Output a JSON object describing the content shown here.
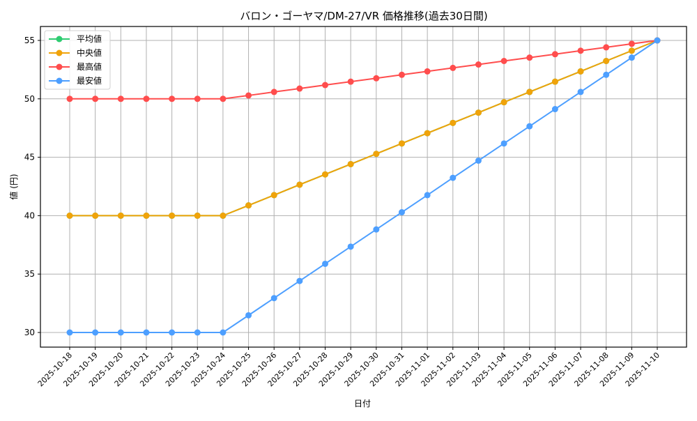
{
  "chart_data": {
    "type": "line",
    "title": "バロン・ゴーヤマ/DM-27/VR 価格推移(過去30日間)",
    "xlabel": "日付",
    "ylabel": "値 (円)",
    "ylim": [
      28.7,
      56.2
    ],
    "yticks": [
      30,
      35,
      40,
      45,
      50,
      55
    ],
    "grid": true,
    "legend_position": "upper left",
    "x": [
      "2025-10-18",
      "2025-10-19",
      "2025-10-20",
      "2025-10-21",
      "2025-10-22",
      "2025-10-23",
      "2025-10-24",
      "2025-10-25",
      "2025-10-26",
      "2025-10-27",
      "2025-10-28",
      "2025-10-29",
      "2025-10-30",
      "2025-10-31",
      "2025-11-01",
      "2025-11-02",
      "2025-11-03",
      "2025-11-04",
      "2025-11-05",
      "2025-11-06",
      "2025-11-07",
      "2025-11-08",
      "2025-11-09",
      "2025-11-10"
    ],
    "series": [
      {
        "name": "平均値",
        "color": "#2ecc71",
        "values": [
          40,
          40,
          40,
          40,
          40,
          40,
          40,
          40.88,
          41.76,
          42.65,
          43.53,
          44.41,
          45.29,
          46.18,
          47.06,
          47.94,
          48.82,
          49.71,
          50.59,
          51.47,
          52.35,
          53.24,
          54.12,
          55
        ]
      },
      {
        "name": "中央値",
        "color": "#f0a30a",
        "values": [
          40,
          40,
          40,
          40,
          40,
          40,
          40,
          40.88,
          41.76,
          42.65,
          43.53,
          44.41,
          45.29,
          46.18,
          47.06,
          47.94,
          48.82,
          49.71,
          50.59,
          51.47,
          52.35,
          53.24,
          54.12,
          55
        ]
      },
      {
        "name": "最高値",
        "color": "#ff4d4d",
        "values": [
          50,
          50,
          50,
          50,
          50,
          50,
          50,
          50.29,
          50.59,
          50.88,
          51.18,
          51.47,
          51.76,
          52.06,
          52.35,
          52.65,
          52.94,
          53.24,
          53.53,
          53.82,
          54.12,
          54.41,
          54.71,
          55
        ]
      },
      {
        "name": "最安値",
        "color": "#4d9fff",
        "values": [
          30,
          30,
          30,
          30,
          30,
          30,
          30,
          31.47,
          32.94,
          34.41,
          35.88,
          37.35,
          38.82,
          40.29,
          41.76,
          43.24,
          44.71,
          46.18,
          47.65,
          49.12,
          50.59,
          52.06,
          53.53,
          55
        ]
      }
    ]
  }
}
